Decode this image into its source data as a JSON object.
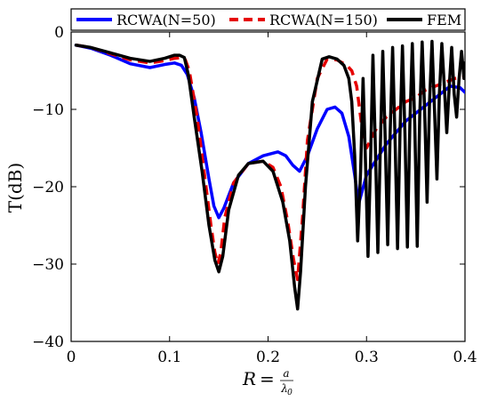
{
  "chart_data": {
    "type": "line",
    "xlabel": "R = a/λ0",
    "xlabel_parts": {
      "lhs": "R",
      "eq": "=",
      "num": "a",
      "den": "λ",
      "den_sub": "0"
    },
    "ylabel": "T(dB)",
    "xlim": [
      0,
      0.4
    ],
    "ylim": [
      -40,
      0
    ],
    "x_ticks": [
      "0",
      "0.1",
      "0.2",
      "0.3",
      "0.4"
    ],
    "y_ticks": [
      "0",
      "−10",
      "−20",
      "−30",
      "−40"
    ],
    "legend_position": "top",
    "grid": false,
    "series": [
      {
        "name": "RCWA(N=50)",
        "color": "#0000ff",
        "style": "solid",
        "x": [
          0.005,
          0.02,
          0.04,
          0.06,
          0.08,
          0.095,
          0.105,
          0.112,
          0.118,
          0.125,
          0.132,
          0.14,
          0.145,
          0.15,
          0.155,
          0.165,
          0.18,
          0.195,
          0.21,
          0.218,
          0.225,
          0.232,
          0.24,
          0.25,
          0.26,
          0.268,
          0.275,
          0.282,
          0.288,
          0.292,
          0.3,
          0.32,
          0.34,
          0.36,
          0.375,
          0.385,
          0.395,
          0.4
        ],
        "values": [
          -1.7,
          -2.1,
          -3.0,
          -4.1,
          -4.6,
          -4.2,
          -4.0,
          -4.3,
          -5.5,
          -8.5,
          -13,
          -19,
          -22.5,
          -24,
          -22.8,
          -19.5,
          -17,
          -16,
          -15.5,
          -16,
          -17.2,
          -18,
          -16,
          -12.5,
          -10,
          -9.7,
          -10.5,
          -13.5,
          -18.5,
          -22.2,
          -18.5,
          -14.5,
          -11.5,
          -9.5,
          -8,
          -7,
          -7.2,
          -7.8
        ]
      },
      {
        "name": "RCWA(N=150)",
        "color": "#e60000",
        "style": "dashed",
        "x": [
          0.005,
          0.02,
          0.04,
          0.06,
          0.08,
          0.095,
          0.105,
          0.112,
          0.116,
          0.12,
          0.128,
          0.135,
          0.142,
          0.146,
          0.149,
          0.152,
          0.156,
          0.165,
          0.18,
          0.195,
          0.205,
          0.213,
          0.22,
          0.226,
          0.23,
          0.235,
          0.24,
          0.25,
          0.26,
          0.27,
          0.28,
          0.285,
          0.29,
          0.295,
          0.3,
          0.31,
          0.32,
          0.33,
          0.34,
          0.35,
          0.36,
          0.37,
          0.38,
          0.39,
          0.4
        ],
        "values": [
          -1.7,
          -2.0,
          -2.8,
          -3.6,
          -4.0,
          -3.7,
          -3.4,
          -3.3,
          -3.6,
          -5,
          -11,
          -18,
          -25,
          -28.5,
          -30,
          -28.5,
          -24,
          -19.5,
          -17,
          -16.7,
          -17.5,
          -20,
          -24.5,
          -29.5,
          -32,
          -24,
          -14,
          -6,
          -3.5,
          -3.6,
          -4.3,
          -5,
          -7,
          -12,
          -15,
          -12.5,
          -11,
          -10,
          -9,
          -8.5,
          -7.5,
          -7,
          -6.5,
          -6,
          -5.8
        ]
      },
      {
        "name": "FEM",
        "color": "#000000",
        "style": "solid",
        "x": [
          0.005,
          0.02,
          0.04,
          0.06,
          0.08,
          0.095,
          0.105,
          0.11,
          0.115,
          0.119,
          0.125,
          0.133,
          0.14,
          0.146,
          0.15,
          0.154,
          0.16,
          0.17,
          0.18,
          0.195,
          0.205,
          0.215,
          0.222,
          0.227,
          0.23,
          0.233,
          0.238,
          0.245,
          0.255,
          0.262,
          0.27,
          0.277,
          0.282,
          0.285,
          0.288,
          0.291,
          0.294,
          0.2965,
          0.299,
          0.3015,
          0.304,
          0.3065,
          0.309,
          0.3115,
          0.314,
          0.3165,
          0.319,
          0.3215,
          0.324,
          0.3265,
          0.329,
          0.3315,
          0.334,
          0.3365,
          0.339,
          0.3415,
          0.344,
          0.3465,
          0.349,
          0.3515,
          0.354,
          0.3565,
          0.359,
          0.3615,
          0.364,
          0.3665,
          0.369,
          0.3715,
          0.374,
          0.3765,
          0.379,
          0.3815,
          0.384,
          0.3865,
          0.389,
          0.3915,
          0.394,
          0.3965,
          0.399,
          0.4
        ],
        "values": [
          -1.7,
          -2.0,
          -2.7,
          -3.4,
          -3.8,
          -3.4,
          -3.0,
          -3.0,
          -3.3,
          -5.5,
          -11,
          -18,
          -25,
          -29.5,
          -31,
          -29,
          -23,
          -18.5,
          -17,
          -16.7,
          -18,
          -22,
          -27,
          -33,
          -35.8,
          -31,
          -20,
          -9,
          -3.5,
          -3.2,
          -3.5,
          -4.3,
          -6,
          -9,
          -16,
          -27,
          -18,
          -6,
          -17,
          -29,
          -17,
          -3,
          -15,
          -28.5,
          -15,
          -2.5,
          -14,
          -27.5,
          -13,
          -2,
          -14,
          -28,
          -13,
          -1.8,
          -13,
          -27.8,
          -12,
          -1.5,
          -12,
          -27.7,
          -11,
          -1.3,
          -10,
          -22,
          -9,
          -1.2,
          -10,
          -19,
          -8,
          -1.5,
          -7,
          -13,
          -7,
          -2,
          -8,
          -11,
          -6,
          -2.5,
          -6,
          -4
        ]
      }
    ]
  }
}
